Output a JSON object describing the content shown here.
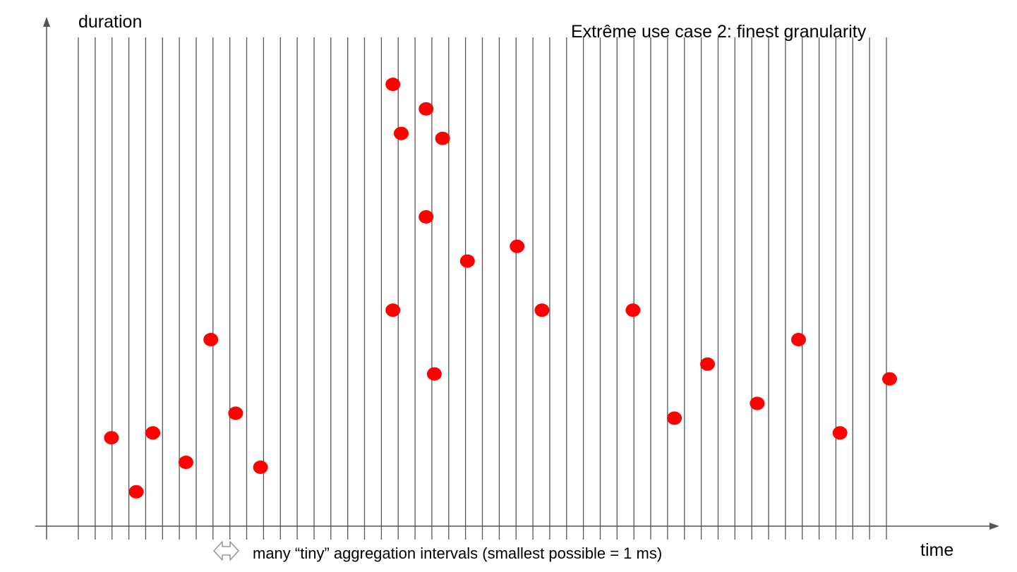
{
  "title": "Extrême use case 2: finest granularity",
  "y_axis_label": "duration",
  "x_axis_label": "time",
  "interval_caption": "many “tiny” aggregation intervals (smallest possible = 1 ms)",
  "interval_icon": "double-arrow-icon",
  "colors": {
    "point": "#ff0000",
    "axis": "#555555",
    "interval_line": "#555555",
    "icon_outline": "#999999"
  },
  "chart_data": {
    "type": "scatter",
    "interval_boundaries": 49,
    "points": [
      {
        "x": 0.04,
        "y": 0.18
      },
      {
        "x": 0.07,
        "y": 0.07
      },
      {
        "x": 0.09,
        "y": 0.19
      },
      {
        "x": 0.13,
        "y": 0.13
      },
      {
        "x": 0.16,
        "y": 0.38
      },
      {
        "x": 0.19,
        "y": 0.23
      },
      {
        "x": 0.22,
        "y": 0.12
      },
      {
        "x": 0.38,
        "y": 0.9
      },
      {
        "x": 0.39,
        "y": 0.8
      },
      {
        "x": 0.38,
        "y": 0.44
      },
      {
        "x": 0.42,
        "y": 0.63
      },
      {
        "x": 0.42,
        "y": 0.85
      },
      {
        "x": 0.43,
        "y": 0.31
      },
      {
        "x": 0.44,
        "y": 0.79
      },
      {
        "x": 0.47,
        "y": 0.54
      },
      {
        "x": 0.53,
        "y": 0.57
      },
      {
        "x": 0.56,
        "y": 0.44
      },
      {
        "x": 0.67,
        "y": 0.44
      },
      {
        "x": 0.72,
        "y": 0.22
      },
      {
        "x": 0.76,
        "y": 0.33
      },
      {
        "x": 0.82,
        "y": 0.25
      },
      {
        "x": 0.87,
        "y": 0.38
      },
      {
        "x": 0.92,
        "y": 0.19
      },
      {
        "x": 0.98,
        "y": 0.3
      }
    ]
  }
}
